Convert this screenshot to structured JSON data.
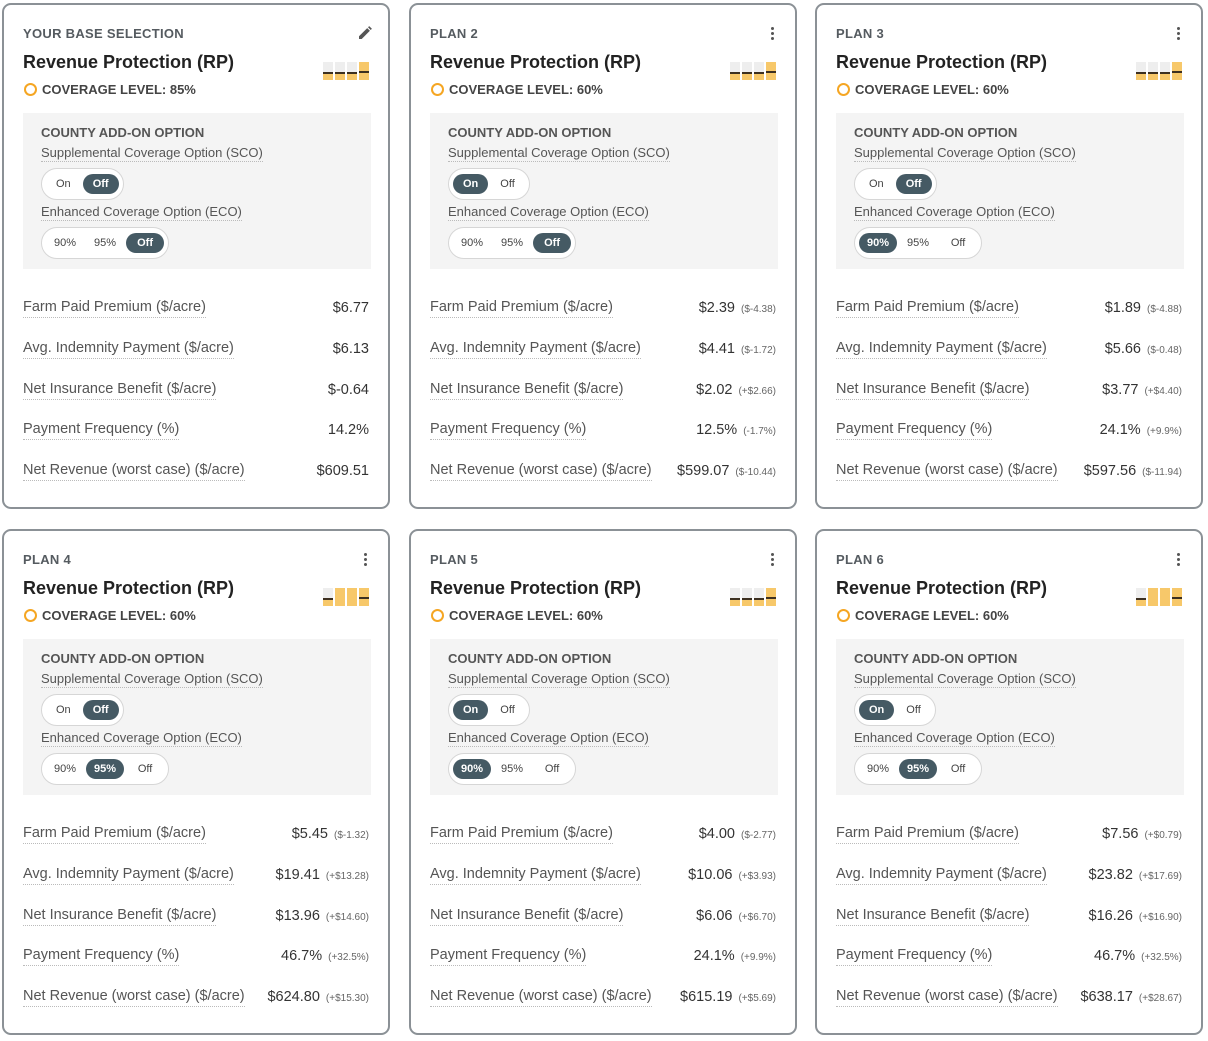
{
  "cards": [
    {
      "label": "YOUR BASE SELECTION",
      "menu_icon": "pencil-icon",
      "title": "Revenue Protection (RP)",
      "coverage": "COVERAGE LEVEL: 85%",
      "addon_title": "COUNTY ADD-ON OPTION",
      "sco_label": "Supplemental Coverage Option (SCO)",
      "sco_options": [
        "On",
        "Off"
      ],
      "sco_selected": "Off",
      "eco_label": "Enhanced Coverage Option (ECO)",
      "eco_options": [
        "90%",
        "95%",
        "Off"
      ],
      "eco_selected": "Off",
      "level_indicator": 1,
      "metrics": [
        {
          "label": "Farm Paid Premium ($/acre)",
          "value": "$6.77",
          "delta": ""
        },
        {
          "label": "Avg. Indemnity Payment ($/acre)",
          "value": "$6.13",
          "delta": ""
        },
        {
          "label": "Net Insurance Benefit ($/acre)",
          "value": "$-0.64",
          "delta": ""
        },
        {
          "label": "Payment Frequency (%)",
          "value": "14.2%",
          "delta": ""
        },
        {
          "label": "Net Revenue (worst case) ($/acre)",
          "value": "$609.51",
          "delta": ""
        }
      ]
    },
    {
      "label": "PLAN 2",
      "menu_icon": "kebab-menu-icon",
      "title": "Revenue Protection (RP)",
      "coverage": "COVERAGE LEVEL: 60%",
      "addon_title": "COUNTY ADD-ON OPTION",
      "sco_label": "Supplemental Coverage Option (SCO)",
      "sco_options": [
        "On",
        "Off"
      ],
      "sco_selected": "On",
      "eco_label": "Enhanced Coverage Option (ECO)",
      "eco_options": [
        "90%",
        "95%",
        "Off"
      ],
      "eco_selected": "Off",
      "level_indicator": 1,
      "metrics": [
        {
          "label": "Farm Paid Premium ($/acre)",
          "value": "$2.39",
          "delta": "($-4.38)"
        },
        {
          "label": "Avg. Indemnity Payment ($/acre)",
          "value": "$4.41",
          "delta": "($-1.72)"
        },
        {
          "label": "Net Insurance Benefit ($/acre)",
          "value": "$2.02",
          "delta": "(+$2.66)"
        },
        {
          "label": "Payment Frequency (%)",
          "value": "12.5%",
          "delta": "(-1.7%)"
        },
        {
          "label": "Net Revenue (worst case) ($/acre)",
          "value": "$599.07",
          "delta": "($-10.44)"
        }
      ]
    },
    {
      "label": "PLAN 3",
      "menu_icon": "kebab-menu-icon",
      "title": "Revenue Protection (RP)",
      "coverage": "COVERAGE LEVEL: 60%",
      "addon_title": "COUNTY ADD-ON OPTION",
      "sco_label": "Supplemental Coverage Option (SCO)",
      "sco_options": [
        "On",
        "Off"
      ],
      "sco_selected": "Off",
      "eco_label": "Enhanced Coverage Option (ECO)",
      "eco_options": [
        "90%",
        "95%",
        "Off"
      ],
      "eco_selected": "90%",
      "level_indicator": 1,
      "metrics": [
        {
          "label": "Farm Paid Premium ($/acre)",
          "value": "$1.89",
          "delta": "($-4.88)"
        },
        {
          "label": "Avg. Indemnity Payment ($/acre)",
          "value": "$5.66",
          "delta": "($-0.48)"
        },
        {
          "label": "Net Insurance Benefit ($/acre)",
          "value": "$3.77",
          "delta": "(+$4.40)"
        },
        {
          "label": "Payment Frequency (%)",
          "value": "24.1%",
          "delta": "(+9.9%)"
        },
        {
          "label": "Net Revenue (worst case) ($/acre)",
          "value": "$597.56",
          "delta": "($-11.94)"
        }
      ]
    },
    {
      "label": "PLAN 4",
      "menu_icon": "kebab-menu-icon",
      "title": "Revenue Protection (RP)",
      "coverage": "COVERAGE LEVEL: 60%",
      "addon_title": "COUNTY ADD-ON OPTION",
      "sco_label": "Supplemental Coverage Option (SCO)",
      "sco_options": [
        "On",
        "Off"
      ],
      "sco_selected": "Off",
      "eco_label": "Enhanced Coverage Option (ECO)",
      "eco_options": [
        "90%",
        "95%",
        "Off"
      ],
      "eco_selected": "95%",
      "level_indicator": 3,
      "metrics": [
        {
          "label": "Farm Paid Premium ($/acre)",
          "value": "$5.45",
          "delta": "($-1.32)"
        },
        {
          "label": "Avg. Indemnity Payment ($/acre)",
          "value": "$19.41",
          "delta": "(+$13.28)"
        },
        {
          "label": "Net Insurance Benefit ($/acre)",
          "value": "$13.96",
          "delta": "(+$14.60)"
        },
        {
          "label": "Payment Frequency (%)",
          "value": "46.7%",
          "delta": "(+32.5%)"
        },
        {
          "label": "Net Revenue (worst case) ($/acre)",
          "value": "$624.80",
          "delta": "(+$15.30)"
        }
      ]
    },
    {
      "label": "PLAN 5",
      "menu_icon": "kebab-menu-icon",
      "title": "Revenue Protection (RP)",
      "coverage": "COVERAGE LEVEL: 60%",
      "addon_title": "COUNTY ADD-ON OPTION",
      "sco_label": "Supplemental Coverage Option (SCO)",
      "sco_options": [
        "On",
        "Off"
      ],
      "sco_selected": "On",
      "eco_label": "Enhanced Coverage Option (ECO)",
      "eco_options": [
        "90%",
        "95%",
        "Off"
      ],
      "eco_selected": "90%",
      "level_indicator": 1,
      "metrics": [
        {
          "label": "Farm Paid Premium ($/acre)",
          "value": "$4.00",
          "delta": "($-2.77)"
        },
        {
          "label": "Avg. Indemnity Payment ($/acre)",
          "value": "$10.06",
          "delta": "(+$3.93)"
        },
        {
          "label": "Net Insurance Benefit ($/acre)",
          "value": "$6.06",
          "delta": "(+$6.70)"
        },
        {
          "label": "Payment Frequency (%)",
          "value": "24.1%",
          "delta": "(+9.9%)"
        },
        {
          "label": "Net Revenue (worst case) ($/acre)",
          "value": "$615.19",
          "delta": "(+$5.69)"
        }
      ]
    },
    {
      "label": "PLAN 6",
      "menu_icon": "kebab-menu-icon",
      "title": "Revenue Protection (RP)",
      "coverage": "COVERAGE LEVEL: 60%",
      "addon_title": "COUNTY ADD-ON OPTION",
      "sco_label": "Supplemental Coverage Option (SCO)",
      "sco_options": [
        "On",
        "Off"
      ],
      "sco_selected": "On",
      "eco_label": "Enhanced Coverage Option (ECO)",
      "eco_options": [
        "90%",
        "95%",
        "Off"
      ],
      "eco_selected": "95%",
      "level_indicator": 3,
      "metrics": [
        {
          "label": "Farm Paid Premium ($/acre)",
          "value": "$7.56",
          "delta": "(+$0.79)"
        },
        {
          "label": "Avg. Indemnity Payment ($/acre)",
          "value": "$23.82",
          "delta": "(+$17.69)"
        },
        {
          "label": "Net Insurance Benefit ($/acre)",
          "value": "$16.26",
          "delta": "(+$16.90)"
        },
        {
          "label": "Payment Frequency (%)",
          "value": "46.7%",
          "delta": "(+32.5%)"
        },
        {
          "label": "Net Revenue (worst case) ($/acre)",
          "value": "$638.17",
          "delta": "(+$28.67)"
        }
      ]
    }
  ],
  "colors": {
    "accent_ring": "#f5a623",
    "toggle_active": "#455a64",
    "bar_fill": "#f7c86a"
  }
}
